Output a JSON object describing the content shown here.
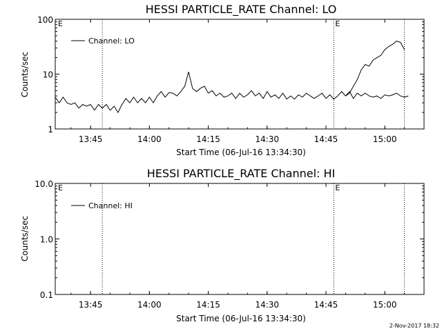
{
  "footer": {
    "timestamp": "2-Nov-2017 18:32"
  },
  "chart_data": [
    {
      "type": "line",
      "title": "HESSI PARTICLE_RATE Channel: LO",
      "xlabel": "Start Time (06-Jul-16 13:34:30)",
      "ylabel": "Counts/sec",
      "yscale": "log",
      "xlim": [
        "13:36",
        "15:10"
      ],
      "ylim": [
        1,
        100
      ],
      "xticks": [
        "13:45",
        "14:00",
        "14:15",
        "14:30",
        "14:45",
        "15:00"
      ],
      "yticks": [
        "1",
        "10",
        "100"
      ],
      "legend": {
        "position": "top-left",
        "entries": [
          "Channel: LO"
        ]
      },
      "markers": [
        {
          "x": "13:48",
          "label": ""
        },
        {
          "x": "14:47",
          "label": "E"
        },
        {
          "x": "15:05",
          "label": ""
        }
      ],
      "left_edge_label": "E",
      "grid": false,
      "series": [
        {
          "name": "Channel: LO",
          "x": [
            "13:36",
            "13:37",
            "13:38",
            "13:39",
            "13:40",
            "13:41",
            "13:42",
            "13:43",
            "13:44",
            "13:45",
            "13:46",
            "13:47",
            "13:48",
            "13:49",
            "13:50",
            "13:51",
            "13:52",
            "13:53",
            "13:54",
            "13:55",
            "13:56",
            "13:57",
            "13:58",
            "13:59",
            "14:00",
            "14:01",
            "14:02",
            "14:03",
            "14:04",
            "14:05",
            "14:06",
            "14:07",
            "14:08",
            "14:09",
            "14:10",
            "14:11",
            "14:12",
            "14:13",
            "14:14",
            "14:15",
            "14:16",
            "14:17",
            "14:18",
            "14:19",
            "14:20",
            "14:21",
            "14:22",
            "14:23",
            "14:24",
            "14:25",
            "14:26",
            "14:27",
            "14:28",
            "14:29",
            "14:30",
            "14:31",
            "14:32",
            "14:33",
            "14:34",
            "14:35",
            "14:36",
            "14:37",
            "14:38",
            "14:39",
            "14:40",
            "14:41",
            "14:42",
            "14:43",
            "14:44",
            "14:45",
            "14:46",
            "14:47",
            "14:48",
            "14:49",
            "14:50",
            "14:51",
            "14:52",
            "14:53",
            "14:54",
            "14:55",
            "14:56",
            "14:57",
            "14:58",
            "14:59",
            "15:00",
            "15:01",
            "15:02",
            "15:03",
            "15:04",
            "15:05",
            "15:06"
          ],
          "values": [
            3.8,
            3.0,
            3.8,
            3.0,
            2.8,
            3.0,
            2.4,
            2.8,
            2.6,
            2.8,
            2.2,
            2.8,
            2.4,
            2.8,
            2.2,
            2.6,
            2.0,
            2.8,
            3.6,
            3.0,
            3.8,
            3.0,
            3.6,
            3.0,
            3.8,
            3.0,
            4.0,
            4.8,
            3.8,
            4.6,
            4.5,
            4.0,
            4.8,
            6.0,
            11.0,
            5.5,
            4.8,
            5.5,
            6.0,
            4.5,
            5.0,
            4.0,
            4.5,
            3.8,
            4.0,
            4.5,
            3.6,
            4.5,
            3.8,
            4.2,
            5.0,
            4.0,
            4.5,
            3.6,
            4.8,
            3.8,
            4.2,
            3.6,
            4.5,
            3.5,
            4.0,
            3.5,
            4.2,
            3.8,
            4.5,
            4.0,
            3.6,
            4.0,
            4.5,
            3.6,
            4.2,
            3.5,
            4.0,
            4.8,
            4.0,
            4.8,
            3.6,
            4.5,
            4.0,
            4.5,
            4.0,
            3.8,
            4.0,
            3.6,
            4.2,
            4.0,
            4.2,
            4.5,
            4.0,
            3.8,
            4.0
          ]
        },
        {
          "name": "",
          "x": [
            "14:50",
            "14:51",
            "14:52",
            "14:53",
            "14:54",
            "14:55",
            "14:56",
            "14:57",
            "14:58",
            "14:59",
            "15:00",
            "15:01",
            "15:02",
            "15:03",
            "15:04",
            "15:05"
          ],
          "values": [
            4.0,
            4.5,
            6.0,
            8.0,
            12.0,
            15.0,
            14.0,
            18.0,
            20.0,
            22.0,
            28.0,
            32.0,
            35.0,
            40.0,
            38.0,
            28.0
          ]
        }
      ]
    },
    {
      "type": "line",
      "title": "HESSI PARTICLE_RATE Channel: HI",
      "xlabel": "Start Time (06-Jul-16 13:34:30)",
      "ylabel": "Counts/sec",
      "yscale": "log",
      "xlim": [
        "13:36",
        "15:10"
      ],
      "ylim": [
        0.1,
        10
      ],
      "xticks": [
        "13:45",
        "14:00",
        "14:15",
        "14:30",
        "14:45",
        "15:00"
      ],
      "yticks": [
        "0.1",
        "1.0",
        "10.0"
      ],
      "legend": {
        "position": "top-left",
        "entries": [
          "Channel: HI"
        ]
      },
      "markers": [
        {
          "x": "13:48",
          "label": ""
        },
        {
          "x": "14:47",
          "label": "E"
        },
        {
          "x": "15:05",
          "label": ""
        }
      ],
      "left_edge_label": "E",
      "grid": false,
      "series": [
        {
          "name": "Channel: HI",
          "x": [],
          "values": []
        }
      ]
    }
  ]
}
